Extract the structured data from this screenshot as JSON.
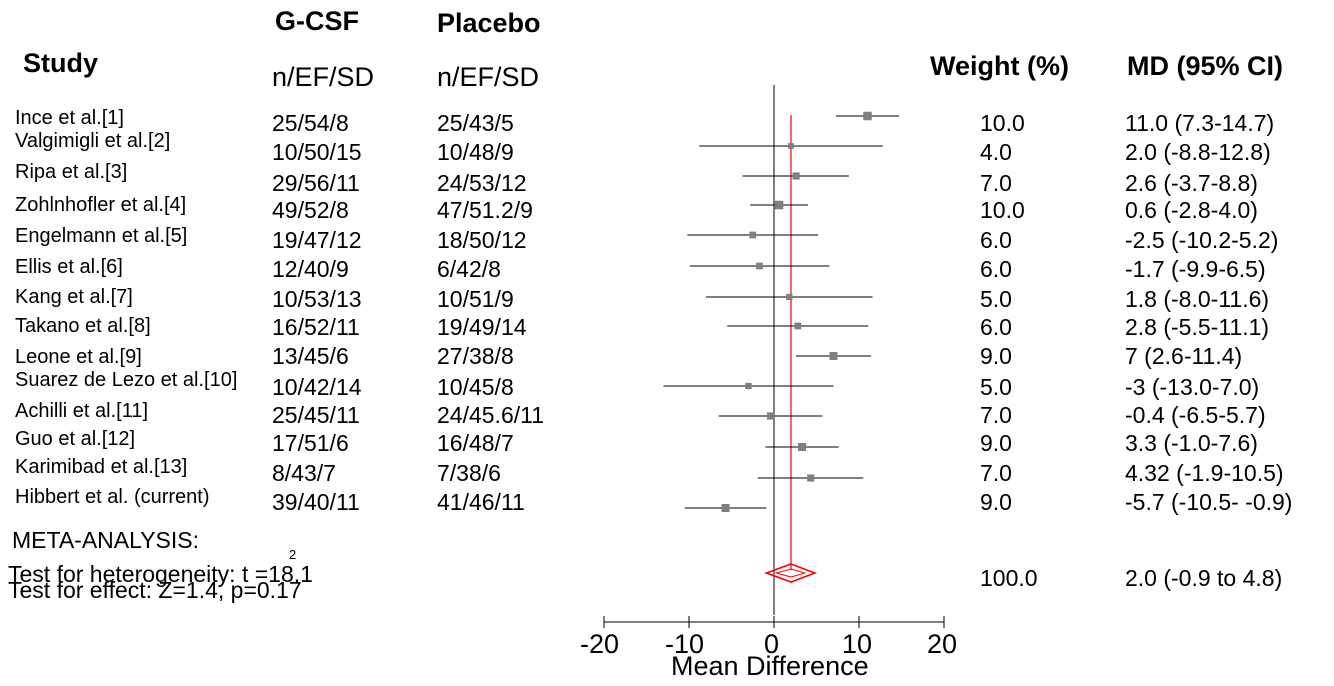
{
  "headers": {
    "group1": "G-CSF",
    "group2": "Placebo",
    "study": "Study",
    "sub1": "n/EF/SD",
    "sub2": "n/EF/SD",
    "weight": "Weight (%)",
    "md": "MD (95% CI)"
  },
  "meta": {
    "label": "META-ANALYSIS:",
    "heterogeneity": "Test for heterogeneity: t =18.1",
    "heterogeneity_sup": "2",
    "effect": "Test for effect: Z=1.4, p=0.17"
  },
  "chart_data": {
    "type": "forest",
    "xlabel": "Mean Difference",
    "xlim": [
      -20,
      20
    ],
    "xticks": [
      "-20",
      "-10",
      "0",
      "10",
      "20"
    ],
    "reference_line": 0,
    "pooled_line": 2.0,
    "colors": {
      "marker": "#7f7f7f",
      "pooled": "#ff0000",
      "line": "#000000"
    },
    "studies": [
      {
        "name": "Ince et al.[1]",
        "gcsf": "25/54/8",
        "placebo": "25/43/5",
        "weight": "10.0",
        "md_text": "11.0 (7.3-14.7)",
        "md": 11.0,
        "lo": 7.3,
        "hi": 14.7
      },
      {
        "name": "Valgimigli et al.[2]",
        "gcsf": "10/50/15",
        "placebo": "10/48/9",
        "weight": "4.0",
        "md_text": "2.0 (-8.8-12.8)",
        "md": 2.0,
        "lo": -8.8,
        "hi": 12.8
      },
      {
        "name": "Ripa et al.[3]",
        "gcsf": "29/56/11",
        "placebo": "24/53/12",
        "weight": "7.0",
        "md_text": "2.6 (-3.7-8.8)",
        "md": 2.6,
        "lo": -3.7,
        "hi": 8.8
      },
      {
        "name": "Zohlnhofler et al.[4]",
        "gcsf": "49/52/8",
        "placebo": "47/51.2/9",
        "weight": "10.0",
        "md_text": "0.6 (-2.8-4.0)",
        "md": 0.6,
        "lo": -2.8,
        "hi": 4.0
      },
      {
        "name": "Engelmann et al.[5]",
        "gcsf": "19/47/12",
        "placebo": "18/50/12",
        "weight": "6.0",
        "md_text": "-2.5 (-10.2-5.2)",
        "md": -2.5,
        "lo": -10.2,
        "hi": 5.2
      },
      {
        "name": "Ellis et al.[6]",
        "gcsf": "12/40/9",
        "placebo": "6/42/8",
        "weight": "6.0",
        "md_text": "-1.7 (-9.9-6.5)",
        "md": -1.7,
        "lo": -9.9,
        "hi": 6.5
      },
      {
        "name": "Kang et al.[7]",
        "gcsf": "10/53/13",
        "placebo": "10/51/9",
        "weight": "5.0",
        "md_text": "1.8 (-8.0-11.6)",
        "md": 1.8,
        "lo": -8.0,
        "hi": 11.6
      },
      {
        "name": "Takano et al.[8]",
        "gcsf": "16/52/11",
        "placebo": "19/49/14",
        "weight": "6.0",
        "md_text": "2.8 (-5.5-11.1)",
        "md": 2.8,
        "lo": -5.5,
        "hi": 11.1
      },
      {
        "name": "Leone et al.[9]",
        "gcsf": "13/45/6",
        "placebo": "27/38/8",
        "weight": "9.0",
        "md_text": "7 (2.6-11.4)",
        "md": 7.0,
        "lo": 2.6,
        "hi": 11.4
      },
      {
        "name": "Suarez de Lezo et al.[10]",
        "gcsf": "10/42/14",
        "placebo": "10/45/8",
        "weight": "5.0",
        "md_text": "-3 (-13.0-7.0)",
        "md": -3.0,
        "lo": -13.0,
        "hi": 7.0
      },
      {
        "name": "Achilli et al.[11]",
        "gcsf": "25/45/11",
        "placebo": "24/45.6/11",
        "weight": "7.0",
        "md_text": "-0.4 (-6.5-5.7)",
        "md": -0.4,
        "lo": -6.5,
        "hi": 5.7
      },
      {
        "name": "Guo et al.[12]",
        "gcsf": "17/51/6",
        "placebo": "16/48/7",
        "weight": "9.0",
        "md_text": "3.3 (-1.0-7.6)",
        "md": 3.3,
        "lo": -1.0,
        "hi": 7.6
      },
      {
        "name": "Karimibad et al.[13]",
        "gcsf": "8/43/7",
        "placebo": "7/38/6",
        "weight": "7.0",
        "md_text": "4.32 (-1.9-10.5)",
        "md": 4.32,
        "lo": -1.9,
        "hi": 10.5
      },
      {
        "name": "Hibbert et al. (current)",
        "gcsf": "39/40/11",
        "placebo": "41/46/11",
        "weight": "9.0",
        "md_text": "-5.7 (-10.5- -0.9)",
        "md": -5.7,
        "lo": -10.5,
        "hi": -0.9
      }
    ],
    "pooled": {
      "weight": "100.0",
      "md_text": "2.0 (-0.9 to 4.8)",
      "md": 2.0,
      "lo": -0.9,
      "hi": 4.8
    }
  }
}
